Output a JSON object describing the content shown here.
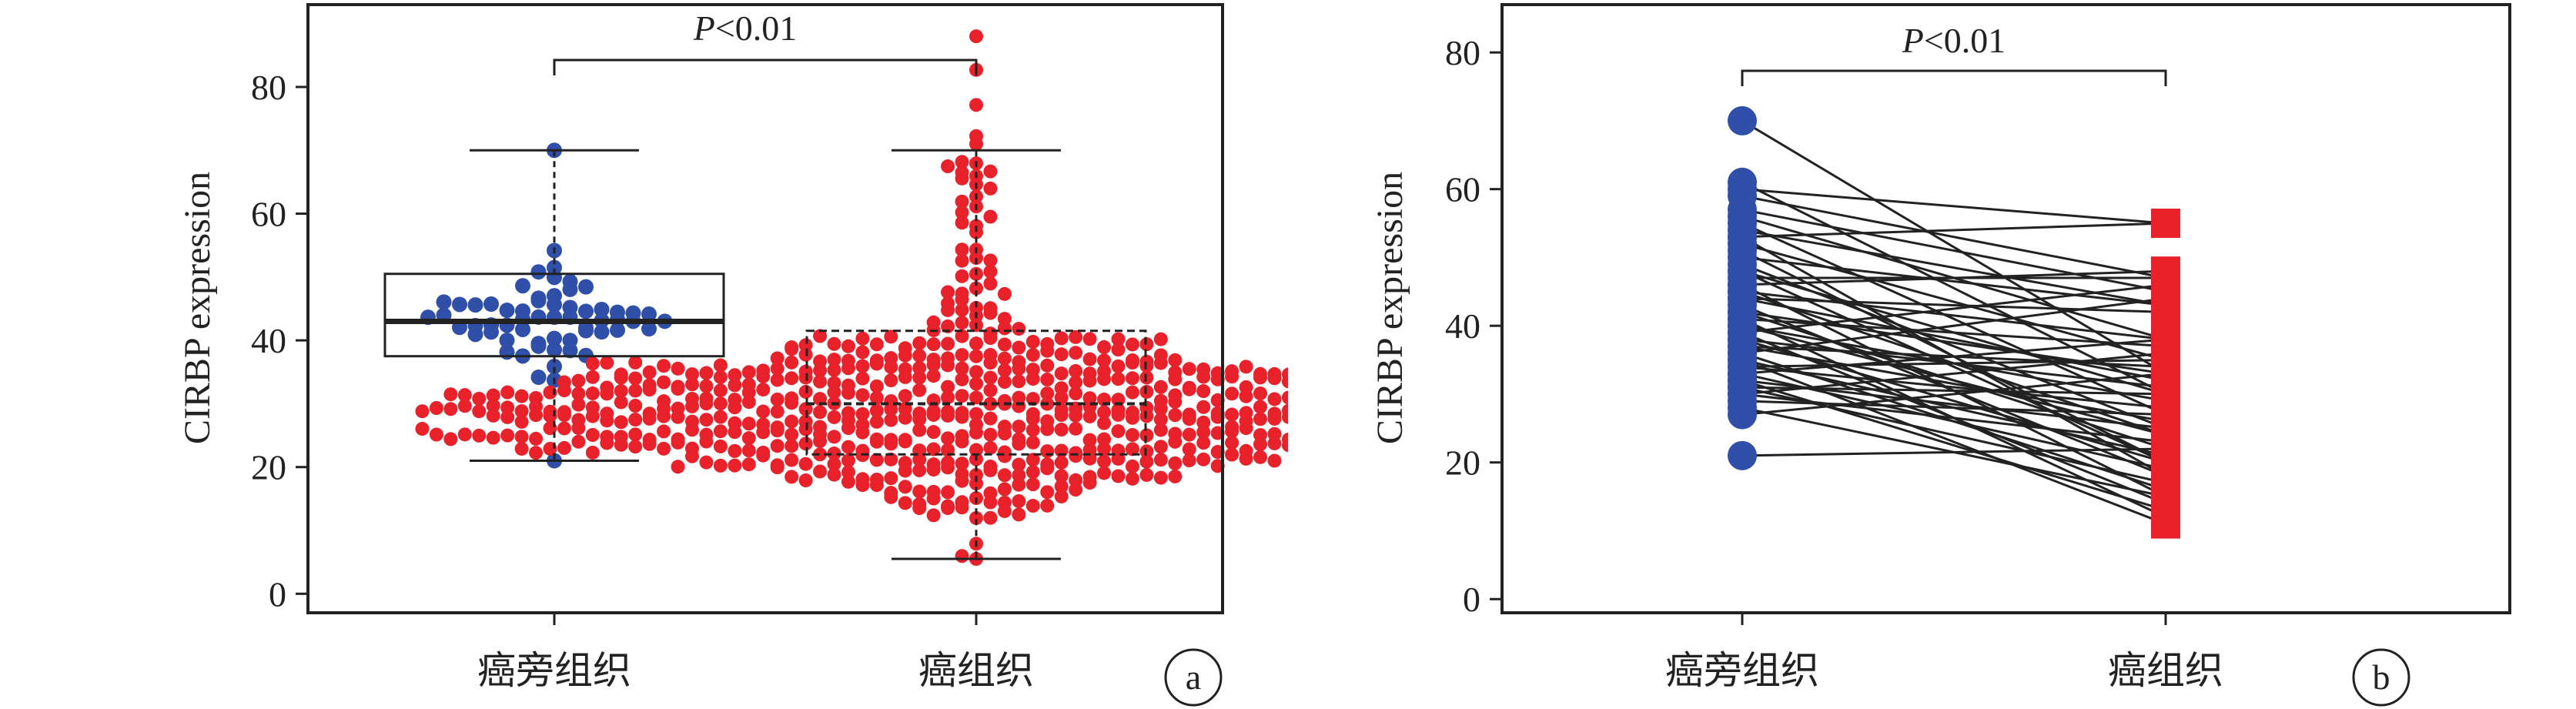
{
  "colors": {
    "blue": "#2f4fa8",
    "red": "#e8212a",
    "line": "#222222",
    "box": "#222222"
  },
  "chart_data": [
    {
      "panel": "a",
      "type": "box+swarm",
      "panel_label": "a",
      "ylabel": "CIRBP expression",
      "ylim": [
        -3,
        93
      ],
      "yticks": [
        0,
        20,
        40,
        60,
        80
      ],
      "categories": [
        "癌旁组织",
        "癌组织"
      ],
      "significance": {
        "text": "P<0.01",
        "italic_part": "P",
        "rest": "<0.01"
      },
      "groups": [
        {
          "name": "癌旁组织",
          "color": "#2f4fa8",
          "n": 61,
          "min": 21,
          "q1": 37.5,
          "median": 43,
          "q3": 50.5,
          "max": 70,
          "dot_range": [
            21,
            70
          ]
        },
        {
          "name": "癌组织",
          "color": "#e8212a",
          "n": 700,
          "min": 5.5,
          "q1": 22,
          "median": 30,
          "q3": 41.5,
          "max": 70,
          "dot_range": [
            5.5,
            88
          ]
        }
      ]
    },
    {
      "panel": "b",
      "type": "paired-line",
      "panel_label": "b",
      "ylabel": "CIRBP expression",
      "ylim": [
        -2,
        87
      ],
      "yticks": [
        0,
        20,
        40,
        60,
        80
      ],
      "categories": [
        "癌旁组织",
        "癌组织"
      ],
      "significance": {
        "text": "P<0.01",
        "italic_part": "P",
        "rest": "<0.01"
      },
      "pairs": [
        [
          70,
          33
        ],
        [
          61,
          30
        ],
        [
          60,
          55
        ],
        [
          59,
          47
        ],
        [
          57,
          45
        ],
        [
          56,
          38
        ],
        [
          55,
          27
        ],
        [
          54,
          43
        ],
        [
          53,
          55
        ],
        [
          52,
          35
        ],
        [
          51,
          20
        ],
        [
          50,
          43
        ],
        [
          49,
          25
        ],
        [
          48,
          30
        ],
        [
          47,
          47
        ],
        [
          46,
          15
        ],
        [
          45,
          38
        ],
        [
          44,
          42
        ],
        [
          43,
          18
        ],
        [
          42,
          22
        ],
        [
          42,
          33
        ],
        [
          41,
          12
        ],
        [
          41,
          37
        ],
        [
          40,
          24
        ],
        [
          40,
          29
        ],
        [
          39,
          14
        ],
        [
          39,
          46
        ],
        [
          38,
          31
        ],
        [
          38,
          20
        ],
        [
          37,
          26
        ],
        [
          37,
          34
        ],
        [
          36,
          16
        ],
        [
          36,
          44
        ],
        [
          35,
          21
        ],
        [
          35,
          11
        ],
        [
          34,
          28
        ],
        [
          34,
          35
        ],
        [
          33,
          19
        ],
        [
          33,
          38
        ],
        [
          32,
          25
        ],
        [
          32,
          13
        ],
        [
          31,
          30
        ],
        [
          31,
          17
        ],
        [
          30,
          23
        ],
        [
          30,
          36
        ],
        [
          29,
          27
        ],
        [
          28,
          15
        ],
        [
          27,
          33
        ],
        [
          21,
          22
        ],
        [
          46,
          48
        ],
        [
          44,
          32
        ],
        [
          48,
          20
        ],
        [
          53,
          18
        ],
        [
          45,
          24
        ]
      ],
      "group_colors": [
        "#2f4fa8",
        "#e8212a"
      ]
    }
  ]
}
